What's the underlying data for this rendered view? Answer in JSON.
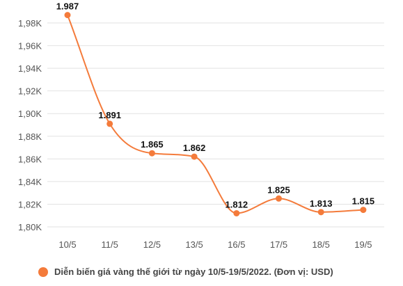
{
  "chart_data": {
    "type": "line",
    "categories": [
      "10/5",
      "11/5",
      "12/5",
      "13/5",
      "16/5",
      "17/5",
      "18/5",
      "19/5"
    ],
    "series": [
      {
        "values": [
          1987,
          1891,
          1865,
          1862,
          1812,
          1825,
          1813,
          1815
        ],
        "data_labels": [
          "1.987",
          "1.891",
          "1.865",
          "1.862",
          "1.812",
          "1.825",
          "1.813",
          "1.815"
        ],
        "color": "#f47b3b"
      }
    ],
    "ylim": [
      1800,
      1988
    ],
    "yticks": [
      1800,
      1820,
      1840,
      1860,
      1880,
      1900,
      1920,
      1940,
      1960,
      1980
    ],
    "ytick_labels": [
      "1,80K",
      "1,82K",
      "1,84K",
      "1,86K",
      "1,88K",
      "1,90K",
      "1,92K",
      "1,94K",
      "1,96K",
      "1,98K"
    ],
    "grid": true,
    "legend_position": "bottom",
    "legend_text": "Diễn biến giá vàng thế giới từ ngày 10/5-19/5/2022. (Đơn vị: USD)"
  }
}
